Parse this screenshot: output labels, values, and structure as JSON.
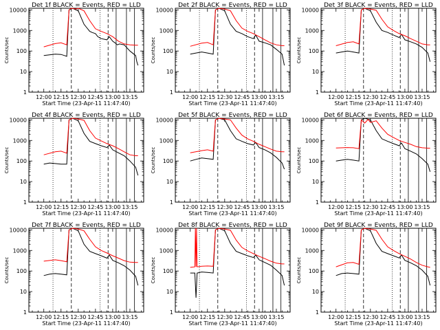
{
  "colors": {
    "events": "#000000",
    "lld": "#ff0000",
    "background": "#ffffff",
    "axes": "#000000"
  },
  "ylabel": "Counts/sec",
  "xlabel": "Start Time (23-Apr-11 11:47:40)",
  "xticks": [
    "12:00",
    "12:15",
    "12:30",
    "12:45",
    "13:00",
    "13:15"
  ],
  "yticks": [
    "1",
    "10",
    "100",
    "1000",
    "10000"
  ],
  "chart_data": [
    {
      "type": "line",
      "title": "Det 1f BLACK = Events, RED = LLD",
      "yscale": "log",
      "ylim": [
        1,
        12000
      ],
      "series": [
        {
          "name": "Events",
          "x": [
            0,
            5,
            10,
            15,
            18,
            20,
            22,
            25,
            28,
            30,
            35,
            40,
            42,
            45,
            47,
            50,
            55,
            57,
            60,
            62,
            64,
            66,
            70,
            75,
            80,
            81,
            82
          ],
          "values": [
            60,
            65,
            70,
            68,
            60,
            55,
            10000,
            12000,
            10000,
            9000,
            2000,
            900,
            800,
            700,
            500,
            400,
            350,
            500,
            300,
            250,
            200,
            220,
            200,
            100,
            60,
            30,
            20
          ]
        },
        {
          "name": "LLD",
          "x": [
            0,
            10,
            15,
            20,
            22,
            24,
            28,
            30,
            35,
            40,
            45,
            50,
            55,
            60,
            65,
            70,
            75,
            80,
            82
          ],
          "values": [
            160,
            230,
            250,
            200,
            10000,
            12000,
            11000,
            12000,
            9000,
            3000,
            1200,
            900,
            700,
            500,
            300,
            220,
            200,
            190,
            190
          ]
        }
      ]
    },
    {
      "type": "line",
      "title": "Det 2f BLACK = Events, RED = LLD",
      "yscale": "log",
      "ylim": [
        1,
        12000
      ],
      "series": [
        {
          "name": "Events",
          "x": [
            0,
            5,
            10,
            15,
            20,
            22,
            25,
            30,
            35,
            40,
            45,
            50,
            55,
            57,
            60,
            65,
            70,
            75,
            80,
            82
          ],
          "values": [
            70,
            80,
            90,
            80,
            70,
            10000,
            12000,
            9000,
            2000,
            900,
            700,
            500,
            400,
            600,
            300,
            250,
            200,
            120,
            70,
            20
          ]
        },
        {
          "name": "LLD",
          "x": [
            0,
            10,
            15,
            20,
            22,
            25,
            30,
            35,
            40,
            45,
            50,
            55,
            60,
            65,
            70,
            75,
            80,
            82
          ],
          "values": [
            170,
            240,
            260,
            200,
            10000,
            12000,
            11000,
            9000,
            3000,
            1300,
            900,
            700,
            500,
            350,
            250,
            200,
            180,
            180
          ]
        }
      ]
    },
    {
      "type": "line",
      "title": "Det 3f BLACK = Events, RED = LLD",
      "yscale": "log",
      "ylim": [
        1,
        12000
      ],
      "series": [
        {
          "name": "Events",
          "x": [
            0,
            5,
            10,
            15,
            20,
            22,
            25,
            30,
            35,
            40,
            45,
            50,
            55,
            57,
            60,
            65,
            70,
            75,
            80,
            82
          ],
          "values": [
            80,
            90,
            100,
            90,
            80,
            10000,
            12000,
            9000,
            2500,
            1000,
            800,
            600,
            450,
            650,
            350,
            280,
            220,
            150,
            80,
            30
          ]
        },
        {
          "name": "LLD",
          "x": [
            0,
            10,
            15,
            20,
            22,
            25,
            30,
            35,
            40,
            45,
            50,
            55,
            60,
            65,
            70,
            75,
            80,
            82
          ],
          "values": [
            180,
            260,
            280,
            220,
            10000,
            12000,
            11000,
            9500,
            3500,
            1500,
            1000,
            700,
            550,
            400,
            300,
            220,
            200,
            200
          ]
        }
      ]
    },
    {
      "type": "line",
      "title": "Det 4f BLACK = Events, RED = LLD",
      "yscale": "log",
      "ylim": [
        1,
        12000
      ],
      "series": [
        {
          "name": "Events",
          "x": [
            0,
            5,
            10,
            15,
            20,
            22,
            25,
            30,
            35,
            40,
            45,
            50,
            55,
            57,
            60,
            65,
            70,
            75,
            80,
            82
          ],
          "values": [
            70,
            80,
            75,
            70,
            70,
            10000,
            12000,
            9000,
            2200,
            900,
            700,
            550,
            450,
            600,
            350,
            250,
            180,
            100,
            50,
            20
          ]
        },
        {
          "name": "LLD",
          "x": [
            0,
            10,
            15,
            20,
            22,
            25,
            30,
            35,
            40,
            45,
            50,
            55,
            60,
            65,
            70,
            75,
            80,
            82
          ],
          "values": [
            200,
            280,
            300,
            240,
            10000,
            12000,
            11000,
            9500,
            3000,
            1300,
            950,
            700,
            550,
            400,
            280,
            200,
            180,
            180
          ]
        }
      ]
    },
    {
      "type": "line",
      "title": "Det 5f BLACK = Events, RED = LLD",
      "yscale": "log",
      "ylim": [
        1,
        12000
      ],
      "series": [
        {
          "name": "Events",
          "x": [
            0,
            5,
            10,
            15,
            20,
            22,
            25,
            30,
            35,
            40,
            45,
            50,
            55,
            57,
            60,
            65,
            70,
            75,
            80,
            82
          ],
          "values": [
            100,
            120,
            140,
            130,
            120,
            10000,
            12000,
            10000,
            3000,
            1200,
            900,
            700,
            600,
            800,
            450,
            350,
            250,
            150,
            80,
            40
          ]
        },
        {
          "name": "LLD",
          "x": [
            0,
            10,
            15,
            20,
            22,
            25,
            30,
            35,
            40,
            45,
            50,
            55,
            60,
            65,
            70,
            75,
            80,
            82
          ],
          "values": [
            250,
            320,
            350,
            300,
            10000,
            12000,
            11000,
            10000,
            4000,
            1800,
            1200,
            900,
            650,
            500,
            380,
            300,
            280,
            280
          ]
        }
      ]
    },
    {
      "type": "line",
      "title": "Det 6f BLACK = Events, RED = LLD",
      "yscale": "log",
      "ylim": [
        1,
        12000
      ],
      "series": [
        {
          "name": "Events",
          "x": [
            0,
            5,
            10,
            15,
            20,
            22,
            25,
            30,
            35,
            40,
            45,
            50,
            55,
            57,
            60,
            65,
            70,
            75,
            80,
            82
          ],
          "values": [
            100,
            110,
            120,
            110,
            100,
            10000,
            12000,
            10000,
            3000,
            1200,
            900,
            700,
            550,
            750,
            400,
            300,
            220,
            130,
            70,
            30
          ]
        },
        {
          "name": "LLD",
          "x": [
            0,
            10,
            15,
            20,
            22,
            25,
            28,
            30,
            35,
            40,
            45,
            50,
            55,
            60,
            65,
            70,
            75,
            80,
            82
          ],
          "values": [
            430,
            450,
            440,
            400,
            10000,
            7000,
            10500,
            7500,
            9000,
            4000,
            2000,
            1400,
            1000,
            800,
            650,
            500,
            440,
            420,
            420
          ]
        }
      ]
    },
    {
      "type": "line",
      "title": "Det 7f BLACK = Events, RED = LLD",
      "yscale": "log",
      "ylim": [
        1,
        12000
      ],
      "series": [
        {
          "name": "Events",
          "x": [
            0,
            5,
            10,
            15,
            20,
            22,
            25,
            30,
            35,
            40,
            45,
            50,
            55,
            57,
            60,
            65,
            70,
            75,
            80,
            82
          ],
          "values": [
            60,
            70,
            75,
            70,
            65,
            10000,
            12000,
            9000,
            2000,
            900,
            700,
            550,
            420,
            600,
            330,
            250,
            180,
            110,
            55,
            20
          ]
        },
        {
          "name": "LLD",
          "x": [
            0,
            10,
            15,
            20,
            22,
            25,
            30,
            35,
            40,
            45,
            50,
            55,
            60,
            65,
            70,
            75,
            80,
            82
          ],
          "values": [
            300,
            350,
            320,
            280,
            10000,
            12000,
            11000,
            9000,
            3500,
            1500,
            1000,
            750,
            550,
            420,
            320,
            270,
            260,
            260
          ]
        }
      ]
    },
    {
      "type": "line",
      "title": "Det 8f BLACK = Events, RED = LLD",
      "yscale": "log",
      "ylim": [
        1,
        12000
      ],
      "series": [
        {
          "name": "Events",
          "x": [
            0,
            4,
            5,
            6,
            10,
            15,
            20,
            22,
            25,
            30,
            35,
            40,
            45,
            50,
            55,
            57,
            60,
            65,
            70,
            75,
            80,
            82
          ],
          "values": [
            80,
            80,
            5,
            80,
            90,
            85,
            80,
            10000,
            12000,
            9000,
            2200,
            900,
            700,
            550,
            450,
            600,
            350,
            260,
            190,
            110,
            60,
            20
          ]
        },
        {
          "name": "LLD",
          "x": [
            0,
            4,
            4.5,
            5,
            5.5,
            6,
            10,
            15,
            20,
            22,
            25,
            30,
            35,
            40,
            45,
            50,
            55,
            60,
            65,
            70,
            75,
            80,
            82
          ],
          "values": [
            150,
            160,
            12000,
            160,
            12000,
            160,
            170,
            175,
            170,
            10000,
            12000,
            11000,
            9500,
            3200,
            1400,
            950,
            700,
            520,
            400,
            300,
            240,
            220,
            220
          ]
        }
      ]
    },
    {
      "type": "line",
      "title": "Det 9f BLACK = Events, RED = LLD",
      "yscale": "log",
      "ylim": [
        1,
        12000
      ],
      "series": [
        {
          "name": "Events",
          "x": [
            0,
            5,
            10,
            15,
            20,
            22,
            25,
            30,
            35,
            40,
            45,
            50,
            55,
            57,
            60,
            65,
            70,
            75,
            80,
            82
          ],
          "values": [
            60,
            75,
            80,
            75,
            70,
            10000,
            12000,
            9000,
            2200,
            900,
            700,
            550,
            430,
            600,
            330,
            250,
            180,
            110,
            55,
            20
          ]
        },
        {
          "name": "LLD",
          "x": [
            0,
            10,
            15,
            20,
            22,
            25,
            30,
            35,
            40,
            45,
            50,
            55,
            60,
            65,
            70,
            75,
            80,
            82
          ],
          "values": [
            160,
            250,
            260,
            210,
            10000,
            12000,
            11000,
            9500,
            3500,
            1500,
            1000,
            700,
            520,
            380,
            260,
            190,
            160,
            150
          ]
        }
      ]
    }
  ],
  "panel_markers": {
    "dotted": [
      8,
      49
    ],
    "dashed": [
      24,
      56
    ],
    "solid": [
      63,
      72,
      79
    ]
  }
}
